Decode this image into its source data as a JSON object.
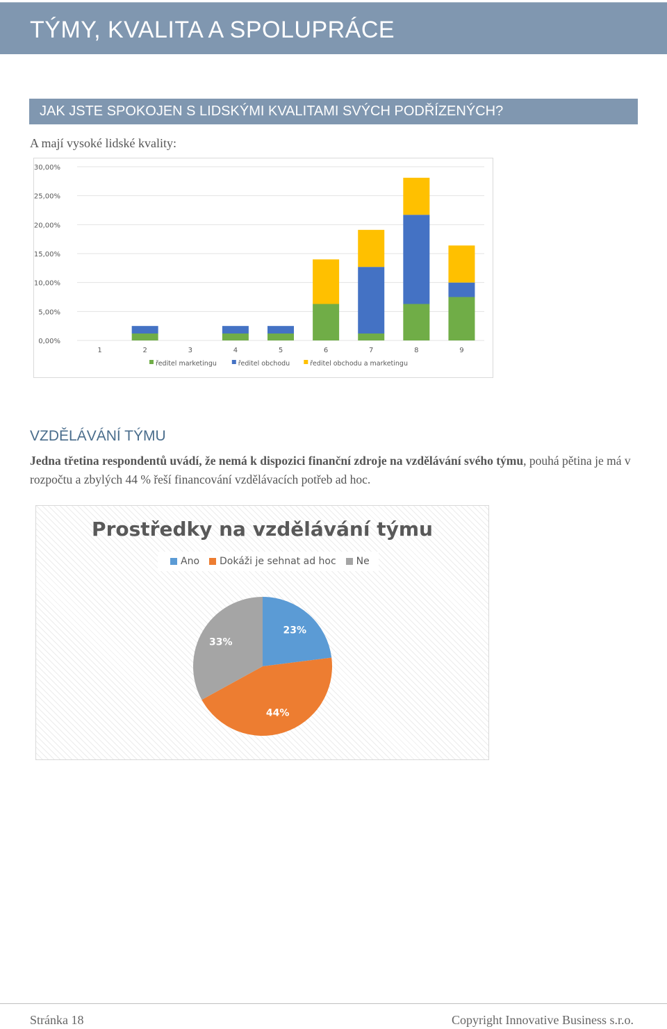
{
  "header": {
    "title": "TÝMY, KVALITA A SPOLUPRÁCE"
  },
  "question": {
    "text": "JAK JSTE SPOKOJEN S LIDSKÝMI KVALITAMI SVÝCH PODŘÍZENÝCH?"
  },
  "subtitle": "A mají vysoké lidské kvality:",
  "chart_data": [
    {
      "type": "bar",
      "stacked": true,
      "categories": [
        "1",
        "2",
        "3",
        "4",
        "5",
        "6",
        "7",
        "8",
        "9"
      ],
      "series": [
        {
          "name": "ředitel marketingu",
          "color": "#70ad47",
          "values": [
            0,
            1.2,
            0,
            1.2,
            1.2,
            6.3,
            1.2,
            6.3,
            7.5
          ]
        },
        {
          "name": "ředitel obchodu",
          "color": "#4472c4",
          "values": [
            0,
            1.3,
            0,
            1.3,
            1.3,
            0,
            11.5,
            15.4,
            2.5
          ]
        },
        {
          "name": "ředitel obchodu a marketingu",
          "color": "#ffc000",
          "values": [
            0,
            0,
            0,
            0,
            0,
            7.7,
            6.4,
            6.4,
            6.4
          ]
        }
      ],
      "ytick_labels": [
        "0,00%",
        "5,00%",
        "10,00%",
        "15,00%",
        "20,00%",
        "25,00%",
        "30,00%"
      ],
      "ylim": [
        0,
        30
      ],
      "grid": true,
      "legend_position": "bottom"
    },
    {
      "type": "pie",
      "title": "Prostředky na vzdělávání týmu",
      "labels": [
        "Ano",
        "Dokáži je sehnat ad hoc",
        "Ne"
      ],
      "values": [
        23,
        44,
        33
      ],
      "value_labels": [
        "23%",
        "44%",
        "33%"
      ],
      "colors": [
        "#5b9bd5",
        "#ed7d31",
        "#a5a5a5"
      ],
      "legend_position": "top"
    }
  ],
  "section": {
    "heading": "VZDĚLÁVÁNÍ TÝMU",
    "lead": "Jedna třetina respondentů uvádí, že nemá k dispozici finanční zdroje na vzdělávání svého týmu",
    "rest": ", pouhá pětina je má v rozpočtu a zbylých 44 % řeší financování vzdělávacích potřeb ad hoc."
  },
  "footer": {
    "page": "Stránka 18",
    "copyright": "Copyright Innovative Business s.r.o."
  }
}
